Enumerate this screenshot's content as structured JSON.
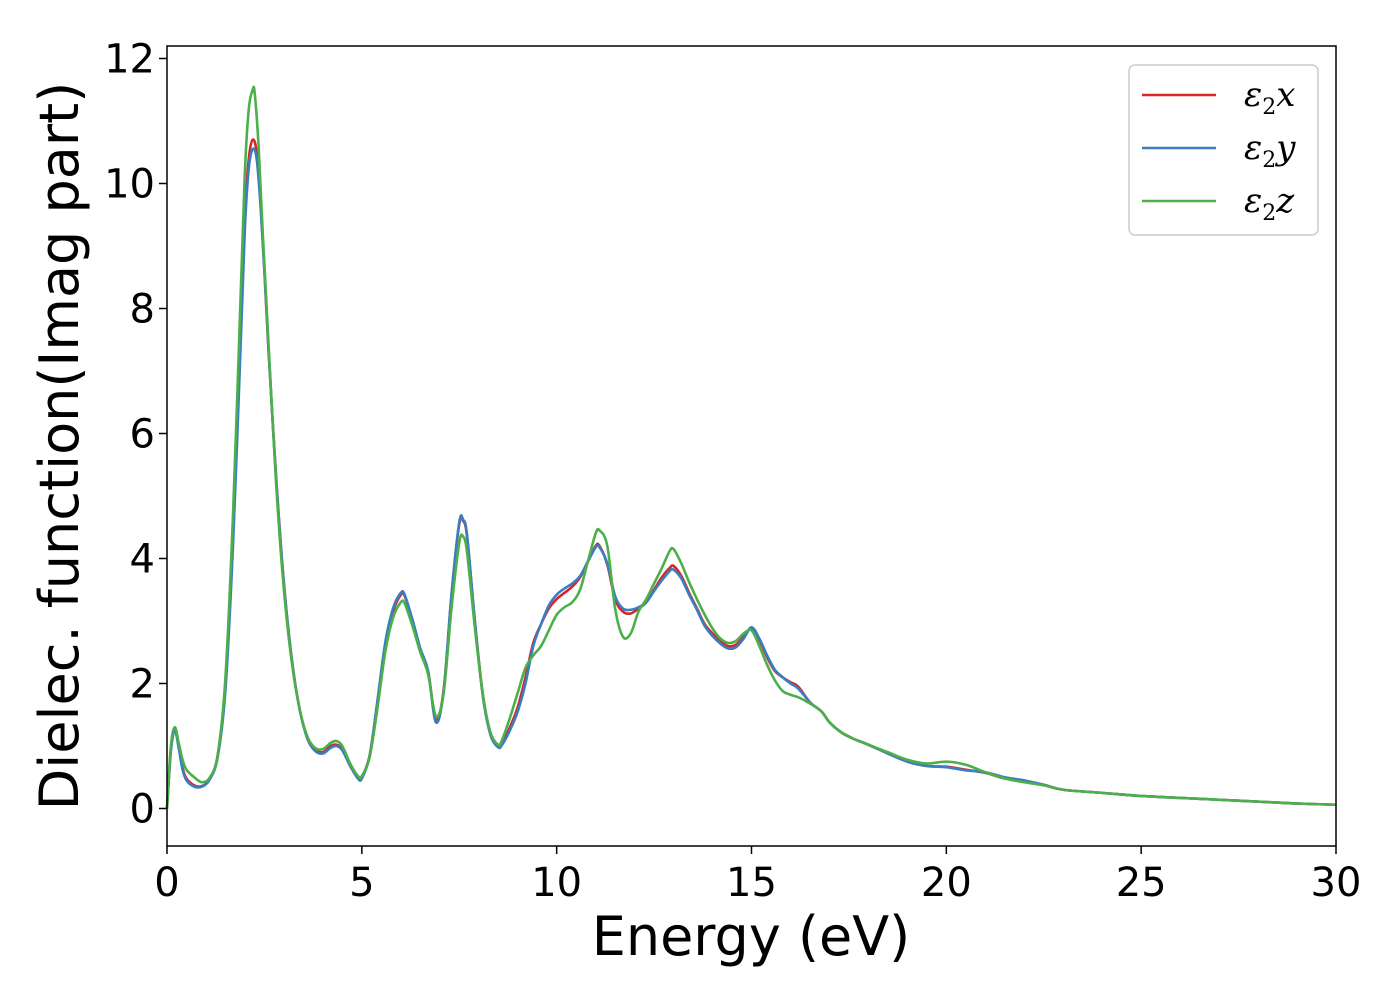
{
  "chart_data": {
    "type": "line",
    "title": "",
    "xlabel": "Energy (eV)",
    "ylabel": "Dielec. function(Imag part)",
    "xlim": [
      0,
      30
    ],
    "ylim": [
      -0.6,
      12.2
    ],
    "xticks": [
      "0",
      "5",
      "10",
      "15",
      "20",
      "25",
      "30"
    ],
    "yticks": [
      "0",
      "2",
      "4",
      "6",
      "8",
      "10",
      "12"
    ],
    "grid": false,
    "legend_position": "top-right",
    "series": [
      {
        "name": "ε2x",
        "label_base": "ε",
        "label_sub": "2",
        "label_var": "x",
        "color": "#d62728",
        "x": [
          0,
          0.1,
          0.2,
          0.3,
          0.4,
          0.5,
          0.7,
          0.9,
          1.1,
          1.3,
          1.5,
          1.7,
          1.9,
          2.0,
          2.1,
          2.2,
          2.3,
          2.4,
          2.5,
          2.6,
          2.8,
          3.0,
          3.2,
          3.4,
          3.6,
          3.8,
          4.0,
          4.2,
          4.35,
          4.5,
          4.7,
          4.9,
          5.0,
          5.2,
          5.4,
          5.6,
          5.8,
          6.0,
          6.1,
          6.3,
          6.5,
          6.7,
          6.9,
          7.1,
          7.3,
          7.5,
          7.6,
          7.7,
          7.9,
          8.1,
          8.3,
          8.5,
          8.6,
          8.8,
          9.0,
          9.2,
          9.4,
          9.6,
          9.8,
          10.0,
          10.2,
          10.4,
          10.6,
          10.8,
          11.0,
          11.1,
          11.3,
          11.5,
          11.7,
          11.9,
          12.1,
          12.3,
          12.5,
          12.7,
          12.9,
          13.0,
          13.2,
          13.4,
          13.6,
          13.8,
          14.0,
          14.2,
          14.4,
          14.6,
          14.8,
          15.0,
          15.2,
          15.4,
          15.6,
          15.8,
          16.0,
          16.2,
          16.5,
          16.8,
          17.0,
          17.3,
          17.6,
          18.0,
          18.5,
          19.0,
          19.5,
          20.0,
          20.5,
          21.0,
          21.5,
          22.0,
          22.5,
          23.0,
          24.0,
          25.0,
          26.0,
          27.0,
          28.0,
          29.0,
          30.0
        ],
        "y": [
          0.0,
          0.95,
          1.28,
          1.0,
          0.65,
          0.48,
          0.37,
          0.36,
          0.48,
          0.85,
          2.0,
          4.5,
          7.8,
          9.5,
          10.4,
          10.7,
          10.5,
          9.7,
          8.6,
          7.4,
          5.3,
          3.6,
          2.4,
          1.6,
          1.15,
          0.95,
          0.9,
          1.0,
          1.02,
          0.95,
          0.7,
          0.5,
          0.5,
          0.85,
          1.7,
          2.6,
          3.15,
          3.42,
          3.4,
          3.0,
          2.55,
          2.2,
          1.42,
          1.9,
          3.4,
          4.55,
          4.6,
          4.35,
          3.0,
          1.85,
          1.2,
          1.0,
          1.05,
          1.3,
          1.62,
          2.1,
          2.65,
          2.95,
          3.2,
          3.35,
          3.45,
          3.55,
          3.7,
          3.95,
          4.2,
          4.2,
          3.9,
          3.35,
          3.15,
          3.12,
          3.2,
          3.3,
          3.5,
          3.7,
          3.85,
          3.88,
          3.72,
          3.45,
          3.2,
          2.95,
          2.8,
          2.68,
          2.6,
          2.62,
          2.75,
          2.88,
          2.7,
          2.42,
          2.2,
          2.1,
          2.02,
          1.95,
          1.7,
          1.55,
          1.38,
          1.22,
          1.12,
          1.02,
          0.88,
          0.75,
          0.68,
          0.67,
          0.62,
          0.57,
          0.48,
          0.44,
          0.38,
          0.3,
          0.25,
          0.2,
          0.17,
          0.14,
          0.11,
          0.08,
          0.06
        ]
      },
      {
        "name": "ε2y",
        "label_base": "ε",
        "label_sub": "2",
        "label_var": "y",
        "color": "#3a7ebf",
        "x": [
          0,
          0.1,
          0.2,
          0.3,
          0.4,
          0.5,
          0.7,
          0.9,
          1.1,
          1.3,
          1.5,
          1.7,
          1.9,
          2.0,
          2.1,
          2.2,
          2.3,
          2.4,
          2.5,
          2.6,
          2.8,
          3.0,
          3.2,
          3.4,
          3.6,
          3.8,
          4.0,
          4.2,
          4.35,
          4.5,
          4.7,
          4.9,
          5.0,
          5.2,
          5.4,
          5.6,
          5.8,
          6.0,
          6.1,
          6.3,
          6.5,
          6.7,
          6.9,
          7.1,
          7.3,
          7.5,
          7.6,
          7.7,
          7.9,
          8.1,
          8.3,
          8.5,
          8.6,
          8.8,
          9.0,
          9.2,
          9.4,
          9.6,
          9.8,
          10.0,
          10.2,
          10.4,
          10.6,
          10.8,
          11.0,
          11.1,
          11.3,
          11.5,
          11.7,
          11.9,
          12.1,
          12.3,
          12.5,
          12.7,
          12.9,
          13.0,
          13.2,
          13.4,
          13.6,
          13.8,
          14.0,
          14.2,
          14.4,
          14.6,
          14.8,
          15.0,
          15.2,
          15.4,
          15.6,
          15.8,
          16.0,
          16.2,
          16.5,
          16.8,
          17.0,
          17.3,
          17.6,
          18.0,
          18.5,
          19.0,
          19.5,
          20.0,
          20.5,
          21.0,
          21.5,
          22.0,
          22.5,
          23.0,
          24.0,
          25.0,
          26.0,
          27.0,
          28.0,
          29.0,
          30.0
        ],
        "y": [
          0.0,
          0.92,
          1.25,
          0.97,
          0.62,
          0.45,
          0.35,
          0.35,
          0.47,
          0.82,
          1.9,
          4.3,
          7.6,
          9.3,
          10.25,
          10.55,
          10.4,
          9.65,
          8.6,
          7.4,
          5.3,
          3.6,
          2.4,
          1.6,
          1.12,
          0.92,
          0.88,
          0.97,
          1.0,
          0.93,
          0.68,
          0.48,
          0.48,
          0.84,
          1.72,
          2.65,
          3.2,
          3.45,
          3.42,
          3.02,
          2.56,
          2.2,
          1.38,
          1.88,
          3.42,
          4.58,
          4.62,
          4.38,
          3.0,
          1.82,
          1.18,
          0.98,
          1.02,
          1.25,
          1.55,
          2.0,
          2.6,
          2.95,
          3.25,
          3.42,
          3.52,
          3.6,
          3.72,
          3.95,
          4.18,
          4.18,
          3.92,
          3.4,
          3.2,
          3.18,
          3.22,
          3.3,
          3.48,
          3.65,
          3.8,
          3.82,
          3.68,
          3.42,
          3.18,
          2.92,
          2.76,
          2.64,
          2.56,
          2.58,
          2.72,
          2.9,
          2.72,
          2.45,
          2.22,
          2.1,
          2.0,
          1.92,
          1.7,
          1.55,
          1.38,
          1.22,
          1.12,
          1.02,
          0.88,
          0.75,
          0.68,
          0.66,
          0.61,
          0.58,
          0.5,
          0.45,
          0.38,
          0.3,
          0.25,
          0.2,
          0.17,
          0.14,
          0.11,
          0.08,
          0.06
        ]
      },
      {
        "name": "ε2z",
        "label_base": "ε",
        "label_sub": "2",
        "label_var": "z",
        "color": "#4daf4a",
        "x": [
          0,
          0.1,
          0.2,
          0.3,
          0.4,
          0.5,
          0.7,
          0.9,
          1.1,
          1.3,
          1.5,
          1.7,
          1.9,
          2.0,
          2.1,
          2.2,
          2.25,
          2.35,
          2.45,
          2.6,
          2.8,
          3.0,
          3.2,
          3.4,
          3.6,
          3.8,
          4.0,
          4.2,
          4.35,
          4.5,
          4.7,
          4.9,
          5.0,
          5.2,
          5.4,
          5.6,
          5.8,
          6.0,
          6.1,
          6.3,
          6.5,
          6.7,
          6.9,
          7.1,
          7.3,
          7.5,
          7.6,
          7.7,
          7.9,
          8.1,
          8.3,
          8.5,
          8.6,
          8.8,
          9.0,
          9.2,
          9.4,
          9.6,
          9.8,
          10.0,
          10.2,
          10.4,
          10.6,
          10.8,
          11.0,
          11.1,
          11.3,
          11.5,
          11.7,
          11.9,
          12.1,
          12.3,
          12.5,
          12.7,
          12.9,
          13.0,
          13.2,
          13.4,
          13.6,
          13.8,
          14.0,
          14.2,
          14.4,
          14.6,
          14.8,
          15.0,
          15.2,
          15.4,
          15.6,
          15.8,
          16.0,
          16.2,
          16.5,
          16.8,
          17.0,
          17.3,
          17.6,
          18.0,
          18.5,
          19.0,
          19.5,
          20.0,
          20.5,
          21.0,
          21.5,
          22.0,
          22.5,
          23.0,
          24.0,
          25.0,
          26.0,
          27.0,
          28.0,
          29.0,
          30.0
        ],
        "y": [
          0.0,
          1.0,
          1.3,
          1.05,
          0.78,
          0.62,
          0.5,
          0.42,
          0.5,
          0.85,
          2.1,
          4.8,
          8.4,
          10.2,
          11.2,
          11.5,
          11.45,
          10.6,
          9.3,
          7.5,
          5.2,
          3.5,
          2.35,
          1.6,
          1.15,
          0.97,
          0.95,
          1.05,
          1.08,
          1.0,
          0.72,
          0.52,
          0.52,
          0.82,
          1.6,
          2.5,
          3.05,
          3.3,
          3.28,
          2.92,
          2.5,
          2.15,
          1.48,
          1.85,
          3.2,
          4.25,
          4.35,
          4.1,
          2.9,
          1.85,
          1.22,
          1.02,
          1.1,
          1.45,
          1.85,
          2.25,
          2.45,
          2.6,
          2.85,
          3.1,
          3.22,
          3.3,
          3.5,
          3.95,
          4.4,
          4.45,
          4.2,
          3.2,
          2.75,
          2.8,
          3.15,
          3.35,
          3.6,
          3.85,
          4.12,
          4.15,
          3.92,
          3.62,
          3.35,
          3.1,
          2.88,
          2.72,
          2.65,
          2.68,
          2.8,
          2.85,
          2.6,
          2.3,
          2.05,
          1.88,
          1.82,
          1.78,
          1.68,
          1.55,
          1.38,
          1.22,
          1.12,
          1.02,
          0.9,
          0.78,
          0.72,
          0.75,
          0.7,
          0.58,
          0.48,
          0.42,
          0.37,
          0.3,
          0.25,
          0.2,
          0.17,
          0.14,
          0.11,
          0.08,
          0.06
        ]
      }
    ]
  }
}
